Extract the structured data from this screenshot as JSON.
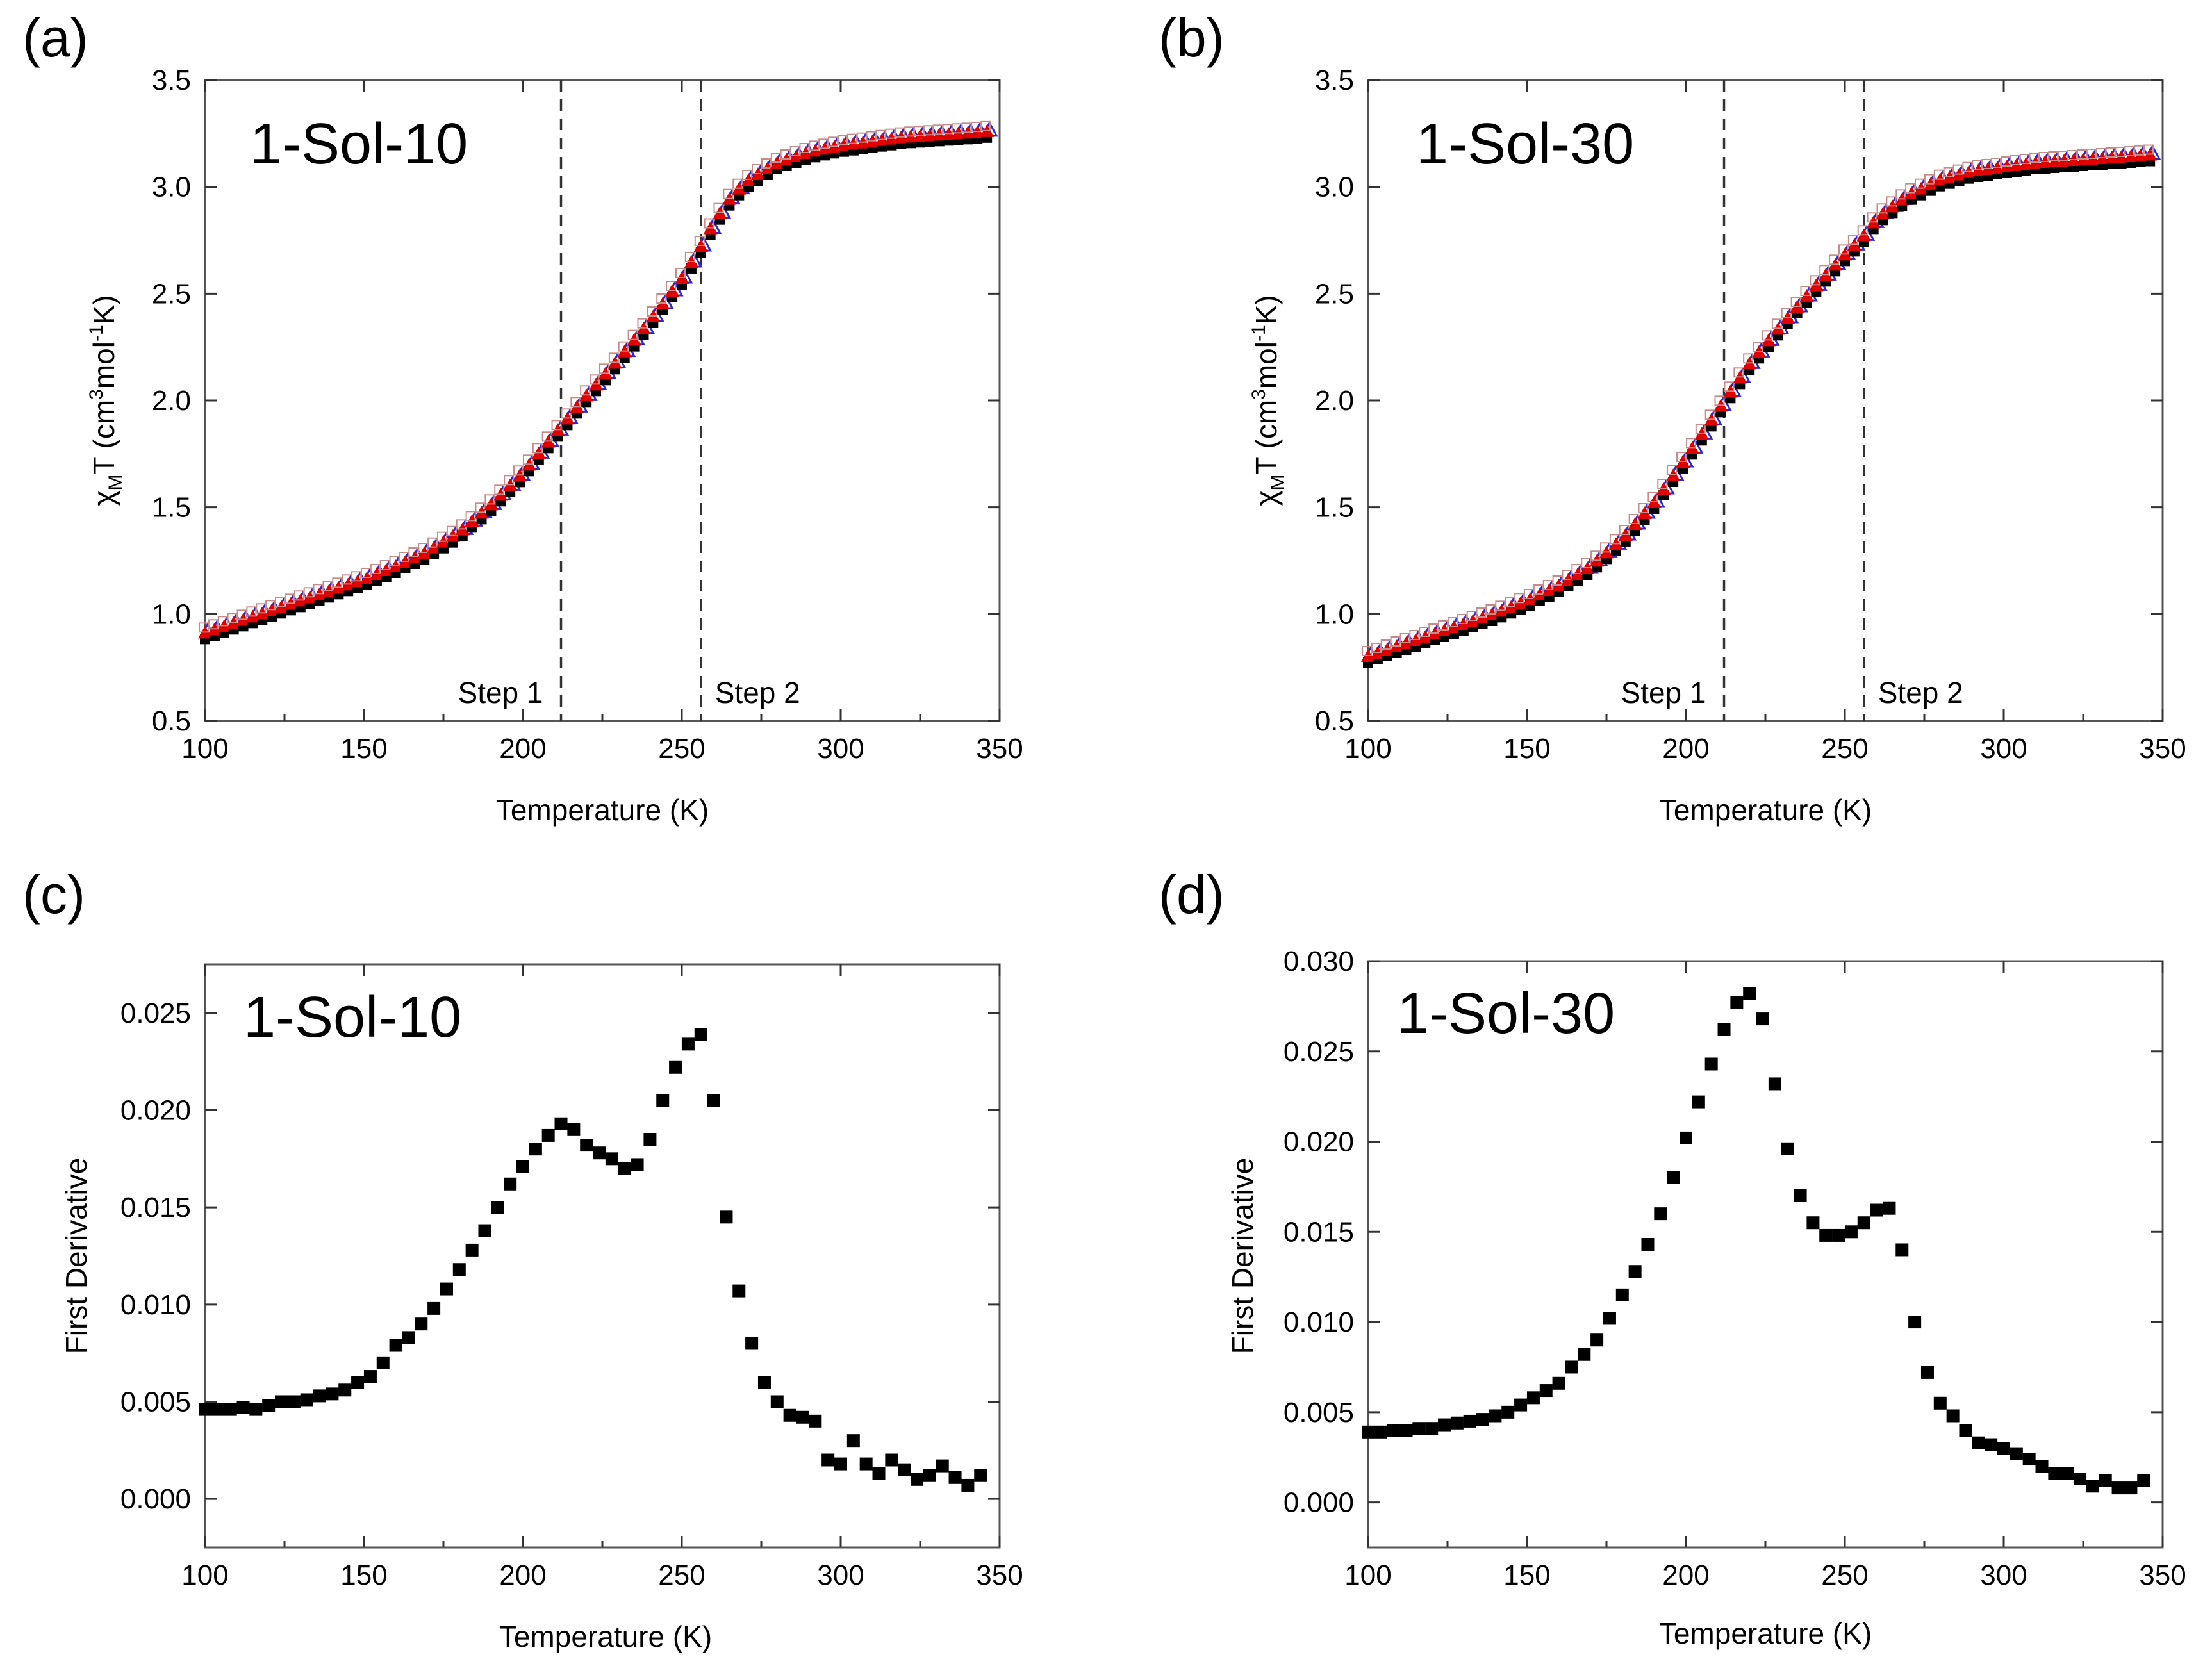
{
  "chart_data": [
    {
      "panel": "(a)",
      "type": "scatter",
      "label": "1-Sol-10",
      "xlabel": "Temperature (K)",
      "ylabel_parts": {
        "chi": "χ",
        "sub": "M",
        "rest": "T (cm",
        "sup3": "3",
        "mol": "mol",
        "supm1": "-1",
        "end": "K)"
      },
      "xlim": [
        100,
        350
      ],
      "ylim": [
        0.5,
        3.5
      ],
      "xticks": [
        "100",
        "150",
        "200",
        "250",
        "300",
        "350"
      ],
      "yticks": [
        "0.5",
        "1.0",
        "1.5",
        "2.0",
        "2.5",
        "3.0",
        "3.5"
      ],
      "xtick_values": [
        100,
        150,
        200,
        250,
        300,
        350
      ],
      "ytick_values": [
        0.5,
        1.0,
        1.5,
        2.0,
        2.5,
        3.0,
        3.5
      ],
      "vlines": [
        {
          "x": 212,
          "label": "Step 1",
          "label_side": "left"
        },
        {
          "x": 256,
          "label": "Step 2",
          "label_side": "right"
        }
      ],
      "curve": {
        "x": [
          100,
          110,
          120,
          130,
          140,
          150,
          160,
          170,
          180,
          190,
          200,
          210,
          220,
          230,
          240,
          250,
          256,
          260,
          265,
          270,
          280,
          290,
          300,
          310,
          320,
          330,
          340,
          348
        ],
        "y": [
          0.91,
          0.96,
          1.01,
          1.06,
          1.11,
          1.16,
          1.22,
          1.29,
          1.38,
          1.51,
          1.66,
          1.84,
          2.02,
          2.19,
          2.37,
          2.57,
          2.72,
          2.83,
          2.94,
          3.02,
          3.11,
          3.16,
          3.19,
          3.21,
          3.23,
          3.24,
          3.25,
          3.26
        ]
      },
      "series_colors": [
        "#000000",
        "#2a2ad0",
        "#e00000"
      ],
      "point_step": 3
    },
    {
      "panel": "(b)",
      "type": "scatter",
      "label": "1-Sol-30",
      "xlabel": "Temperature (K)",
      "ylabel_parts": {
        "chi": "χ",
        "sub": "M",
        "rest": "T (cm",
        "sup3": "3",
        "mol": "mol",
        "supm1": "-1",
        "end": "K)"
      },
      "xlim": [
        100,
        350
      ],
      "ylim": [
        0.5,
        3.5
      ],
      "xticks": [
        "100",
        "150",
        "200",
        "250",
        "300",
        "350"
      ],
      "yticks": [
        "0.5",
        "1.0",
        "1.5",
        "2.0",
        "2.5",
        "3.0",
        "3.5"
      ],
      "xtick_values": [
        100,
        150,
        200,
        250,
        300,
        350
      ],
      "ytick_values": [
        0.5,
        1.0,
        1.5,
        2.0,
        2.5,
        3.0,
        3.5
      ],
      "vlines": [
        {
          "x": 212,
          "label": "Step 1",
          "label_side": "left"
        },
        {
          "x": 256,
          "label": "Step 2",
          "label_side": "right"
        }
      ],
      "curve": {
        "x": [
          100,
          110,
          120,
          130,
          140,
          150,
          160,
          170,
          180,
          190,
          200,
          205,
          210,
          215,
          220,
          230,
          240,
          250,
          256,
          260,
          270,
          280,
          290,
          300,
          310,
          320,
          330,
          340,
          348
        ],
        "y": [
          0.8,
          0.85,
          0.9,
          0.95,
          1.0,
          1.06,
          1.13,
          1.22,
          1.35,
          1.52,
          1.73,
          1.84,
          1.95,
          2.06,
          2.17,
          2.35,
          2.52,
          2.68,
          2.77,
          2.85,
          2.96,
          3.03,
          3.07,
          3.09,
          3.11,
          3.12,
          3.13,
          3.14,
          3.15
        ]
      },
      "series_colors": [
        "#000000",
        "#2a2ad0",
        "#e00000"
      ],
      "point_step": 3
    },
    {
      "panel": "(c)",
      "type": "scatter",
      "label": "1-Sol-10",
      "xlabel": "Temperature (K)",
      "ylabel": "First Derivative",
      "xlim": [
        100,
        350
      ],
      "ylim": [
        -0.0025,
        0.0275
      ],
      "xticks": [
        "100",
        "150",
        "200",
        "250",
        "300",
        "350"
      ],
      "yticks": [
        "0.000",
        "0.005",
        "0.010",
        "0.015",
        "0.020",
        "0.025"
      ],
      "xtick_values": [
        100,
        150,
        200,
        250,
        300,
        350
      ],
      "ytick_values": [
        0.0,
        0.005,
        0.01,
        0.015,
        0.02,
        0.025
      ],
      "series": [
        {
          "color": "#000000",
          "x": [
            100,
            104,
            108,
            112,
            116,
            120,
            124,
            128,
            132,
            136,
            140,
            144,
            148,
            152,
            156,
            160,
            164,
            168,
            172,
            176,
            180,
            184,
            188,
            192,
            196,
            200,
            204,
            208,
            212,
            216,
            220,
            224,
            228,
            232,
            236,
            240,
            244,
            248,
            252,
            256,
            260,
            264,
            268,
            272,
            276,
            280,
            284,
            288,
            292,
            296,
            300,
            304,
            308,
            312,
            316,
            320,
            324,
            328,
            332,
            336,
            340,
            344
          ],
          "y": [
            0.0046,
            0.0046,
            0.0046,
            0.0047,
            0.0046,
            0.0048,
            0.005,
            0.005,
            0.0051,
            0.0053,
            0.0054,
            0.0056,
            0.006,
            0.0063,
            0.007,
            0.0079,
            0.0083,
            0.009,
            0.0098,
            0.0108,
            0.0118,
            0.0128,
            0.0138,
            0.015,
            0.0162,
            0.0171,
            0.018,
            0.0187,
            0.0193,
            0.019,
            0.0182,
            0.0178,
            0.0175,
            0.017,
            0.0172,
            0.0185,
            0.0205,
            0.0222,
            0.0234,
            0.0239,
            0.0205,
            0.0145,
            0.0107,
            0.008,
            0.006,
            0.005,
            0.0043,
            0.0042,
            0.004,
            0.002,
            0.0018,
            0.003,
            0.0018,
            0.0013,
            0.002,
            0.0015,
            0.001,
            0.0012,
            0.0017,
            0.0011,
            0.0007,
            0.0012
          ]
        }
      ]
    },
    {
      "panel": "(d)",
      "type": "scatter",
      "label": "1-Sol-30",
      "xlabel": "Temperature (K)",
      "ylabel": "First Derivative",
      "xlim": [
        100,
        350
      ],
      "ylim": [
        -0.0025,
        0.03
      ],
      "xticks": [
        "100",
        "150",
        "200",
        "250",
        "300",
        "350"
      ],
      "yticks": [
        "0.000",
        "0.005",
        "0.010",
        "0.015",
        "0.020",
        "0.025",
        "0.030"
      ],
      "xtick_values": [
        100,
        150,
        200,
        250,
        300,
        350
      ],
      "ytick_values": [
        0.0,
        0.005,
        0.01,
        0.015,
        0.02,
        0.025,
        0.03
      ],
      "series": [
        {
          "color": "#000000",
          "x": [
            100,
            104,
            108,
            112,
            116,
            120,
            124,
            128,
            132,
            136,
            140,
            144,
            148,
            152,
            156,
            160,
            164,
            168,
            172,
            176,
            180,
            184,
            188,
            192,
            196,
            200,
            204,
            208,
            212,
            216,
            220,
            224,
            228,
            232,
            236,
            240,
            244,
            248,
            252,
            256,
            260,
            264,
            268,
            272,
            276,
            280,
            284,
            288,
            292,
            296,
            300,
            304,
            308,
            312,
            316,
            320,
            324,
            328,
            332,
            336,
            340,
            344
          ],
          "y": [
            0.0039,
            0.0039,
            0.004,
            0.004,
            0.0041,
            0.0041,
            0.0043,
            0.0044,
            0.0045,
            0.0046,
            0.0048,
            0.005,
            0.0054,
            0.0058,
            0.0062,
            0.0066,
            0.0075,
            0.0082,
            0.009,
            0.0102,
            0.0115,
            0.0128,
            0.0143,
            0.016,
            0.018,
            0.0202,
            0.0222,
            0.0243,
            0.0262,
            0.0277,
            0.0282,
            0.0268,
            0.0232,
            0.0196,
            0.017,
            0.0155,
            0.0148,
            0.0148,
            0.015,
            0.0155,
            0.0162,
            0.0163,
            0.014,
            0.01,
            0.0072,
            0.0055,
            0.0048,
            0.004,
            0.0033,
            0.0032,
            0.003,
            0.0027,
            0.0024,
            0.002,
            0.0016,
            0.0016,
            0.0013,
            0.0009,
            0.0012,
            0.0008,
            0.0008,
            0.0012
          ]
        }
      ]
    }
  ]
}
